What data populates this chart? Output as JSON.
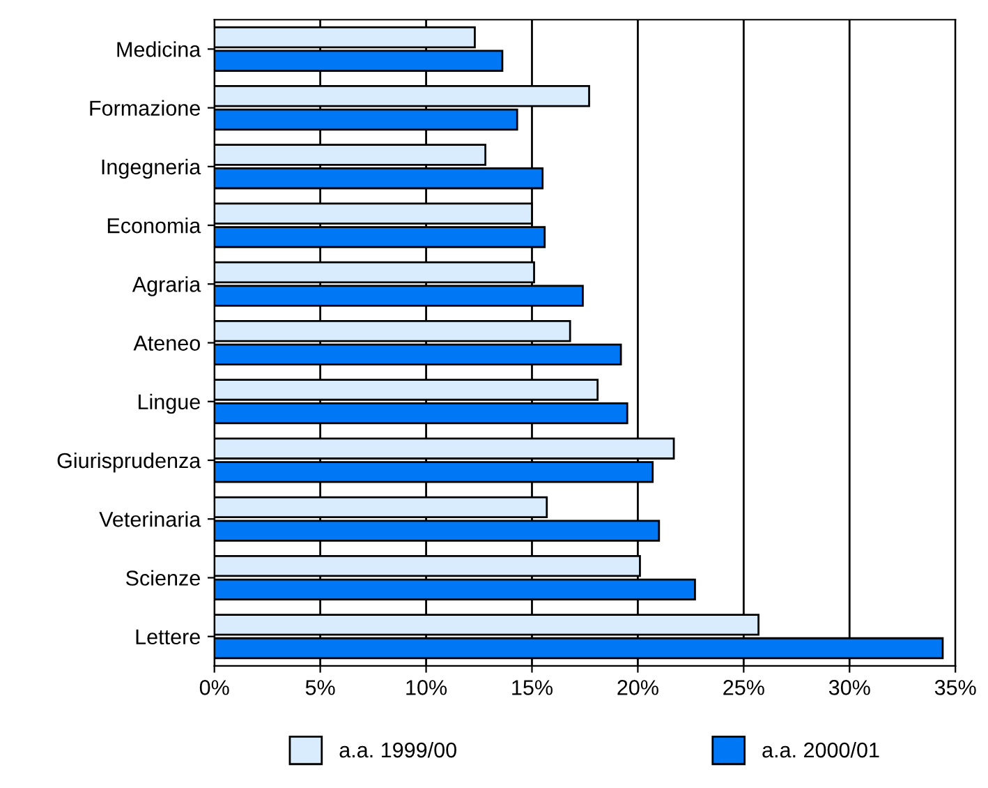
{
  "chart_data": {
    "type": "bar",
    "orientation": "horizontal",
    "categories": [
      "Medicina",
      "Formazione",
      "Ingegneria",
      "Economia",
      "Agraria",
      "Ateneo",
      "Lingue",
      "Giurisprudenza",
      "Veterinaria",
      "Scienze",
      "Lettere"
    ],
    "series": [
      {
        "name": "a.a. 1999/00",
        "color": "#d9ecfd",
        "values": [
          12.3,
          17.7,
          12.8,
          15.0,
          15.1,
          16.8,
          18.1,
          21.7,
          15.7,
          20.1,
          25.7
        ]
      },
      {
        "name": "a.a. 2000/01",
        "color": "#0077f4",
        "values": [
          13.6,
          14.3,
          15.5,
          15.6,
          17.4,
          19.2,
          19.5,
          20.7,
          21.0,
          22.7,
          34.4
        ]
      }
    ],
    "xlim": [
      0,
      35
    ],
    "xticks": [
      {
        "value": 0,
        "label": "0%"
      },
      {
        "value": 5,
        "label": "5%"
      },
      {
        "value": 10,
        "label": "10%"
      },
      {
        "value": 15,
        "label": "15%"
      },
      {
        "value": 20,
        "label": "20%"
      },
      {
        "value": 25,
        "label": "25%"
      },
      {
        "value": 30,
        "label": "30%"
      },
      {
        "value": 35,
        "label": "35%"
      }
    ],
    "grid": "x",
    "legend": "bottom"
  }
}
